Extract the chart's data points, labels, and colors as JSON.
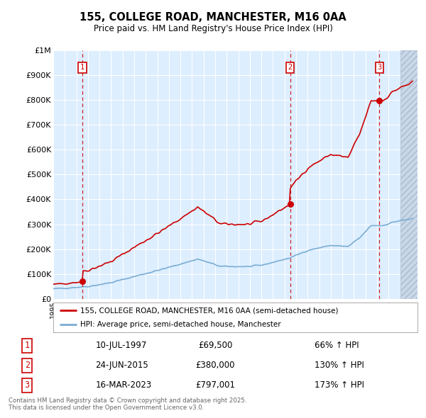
{
  "title": "155, COLLEGE ROAD, MANCHESTER, M16 0AA",
  "subtitle": "Price paid vs. HM Land Registry's House Price Index (HPI)",
  "legend_line1": "155, COLLEGE ROAD, MANCHESTER, M16 0AA (semi-detached house)",
  "legend_line2": "HPI: Average price, semi-detached house, Manchester",
  "footnote": "Contains HM Land Registry data © Crown copyright and database right 2025.\nThis data is licensed under the Open Government Licence v3.0.",
  "sales": [
    {
      "label": "1",
      "date": "10-JUL-1997",
      "price": 69500,
      "hpi_pct": "66% ↑ HPI",
      "year": 1997.53
    },
    {
      "label": "2",
      "date": "24-JUN-2015",
      "price": 380000,
      "hpi_pct": "130% ↑ HPI",
      "year": 2015.48
    },
    {
      "label": "3",
      "date": "16-MAR-2023",
      "price": 797001,
      "hpi_pct": "173% ↑ HPI",
      "year": 2023.2
    }
  ],
  "red_line_color": "#cc0000",
  "blue_line_color": "#7aadd4",
  "bg_color": "#ddeeff",
  "grid_color": "#ffffff",
  "xmin": 1995.0,
  "xmax": 2026.5,
  "ymin": 0,
  "ymax": 1000000,
  "yticks": [
    0,
    100000,
    200000,
    300000,
    400000,
    500000,
    600000,
    700000,
    800000,
    900000,
    1000000
  ],
  "ytick_labels": [
    "£0",
    "£100K",
    "£200K",
    "£300K",
    "£400K",
    "£500K",
    "£600K",
    "£700K",
    "£800K",
    "£900K",
    "£1M"
  ],
  "hatch_start": 2025.0,
  "sale1_year": 1997.53,
  "sale1_price": 69500,
  "sale2_year": 2015.48,
  "sale2_price": 380000,
  "sale3_year": 2023.2,
  "sale3_price": 797001
}
